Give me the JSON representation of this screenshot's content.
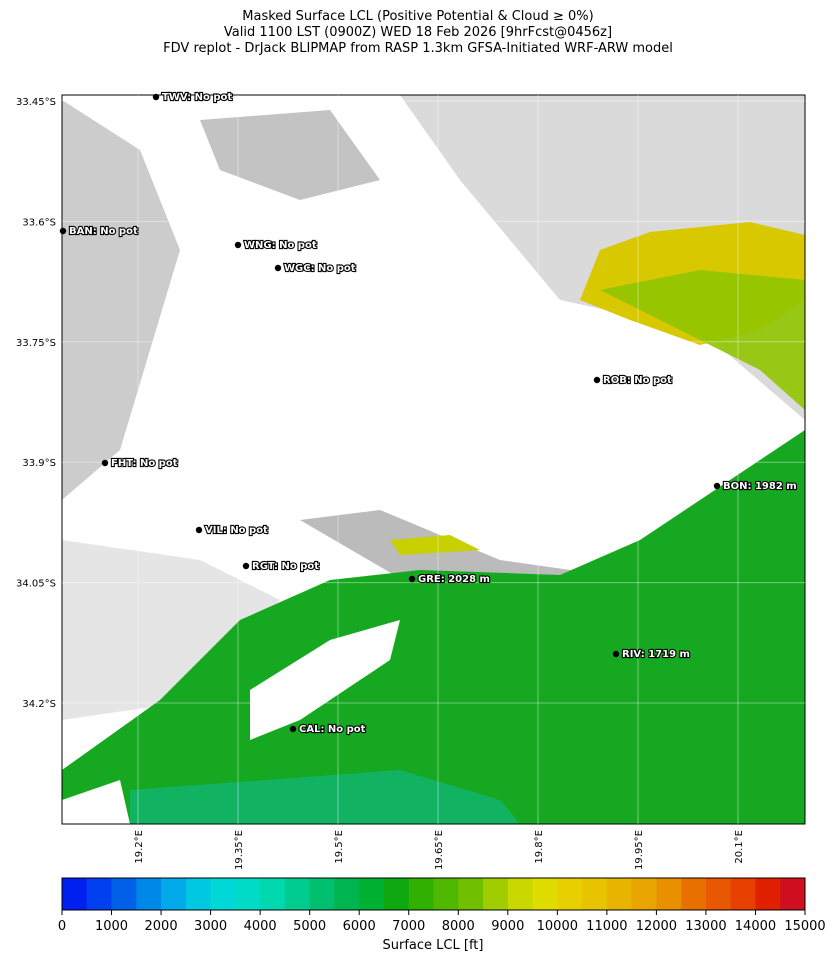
{
  "title": [
    "Masked Surface LCL (Positive Potential & Cloud ≥ 0%)",
    "Valid 1100 LST (0900Z) WED 18 Feb 2026 [9hrFcst@0456z]",
    "FDV replot - DrJack BLIPMAP from RASP 1.3km GFSA-Initiated WRF-ARW model"
  ],
  "lat_labels": [
    "33.45°S",
    "33.6°S",
    "33.75°S",
    "33.9°S",
    "34.05°S",
    "34.2°S"
  ],
  "lon_labels": [
    "19.2°E",
    "19.35°E",
    "19.5°E",
    "19.65°E",
    "19.8°E",
    "19.95°E",
    "20.1°E"
  ],
  "stations": [
    {
      "label": "TWV: No pot"
    },
    {
      "label": "BAN: No pot"
    },
    {
      "label": "WNG: No pot"
    },
    {
      "label": "WGC: No pot"
    },
    {
      "label": "ROB: No pot"
    },
    {
      "label": "FHT: No pot"
    },
    {
      "label": "BON: 1982 m"
    },
    {
      "label": "VIL: No pot"
    },
    {
      "label": "RGT: No pot"
    },
    {
      "label": "GRE: 2028 m"
    },
    {
      "label": "RIV: 1719 m"
    },
    {
      "label": "CAL: No pot"
    }
  ],
  "colorbar": {
    "label": "Surface LCL [ft]",
    "ticks": [
      0,
      1000,
      2000,
      3000,
      4000,
      5000,
      6000,
      7000,
      8000,
      9000,
      10000,
      11000,
      12000,
      13000,
      14000,
      15000
    ],
    "colors": [
      "#0020f0",
      "#0040f0",
      "#0060e8",
      "#0088e8",
      "#00aae8",
      "#00c8e0",
      "#00d8d8",
      "#00dcc8",
      "#00d8b0",
      "#00cc90",
      "#00c070",
      "#00b450",
      "#00b030",
      "#10a810",
      "#30b000",
      "#50b800",
      "#70c000",
      "#a0cc00",
      "#c8d800",
      "#e0dc00",
      "#e8d000",
      "#e8c400",
      "#e8b400",
      "#e8a400",
      "#e89000",
      "#e87000",
      "#e85800",
      "#e84000",
      "#e02000",
      "#d01020"
    ]
  }
}
